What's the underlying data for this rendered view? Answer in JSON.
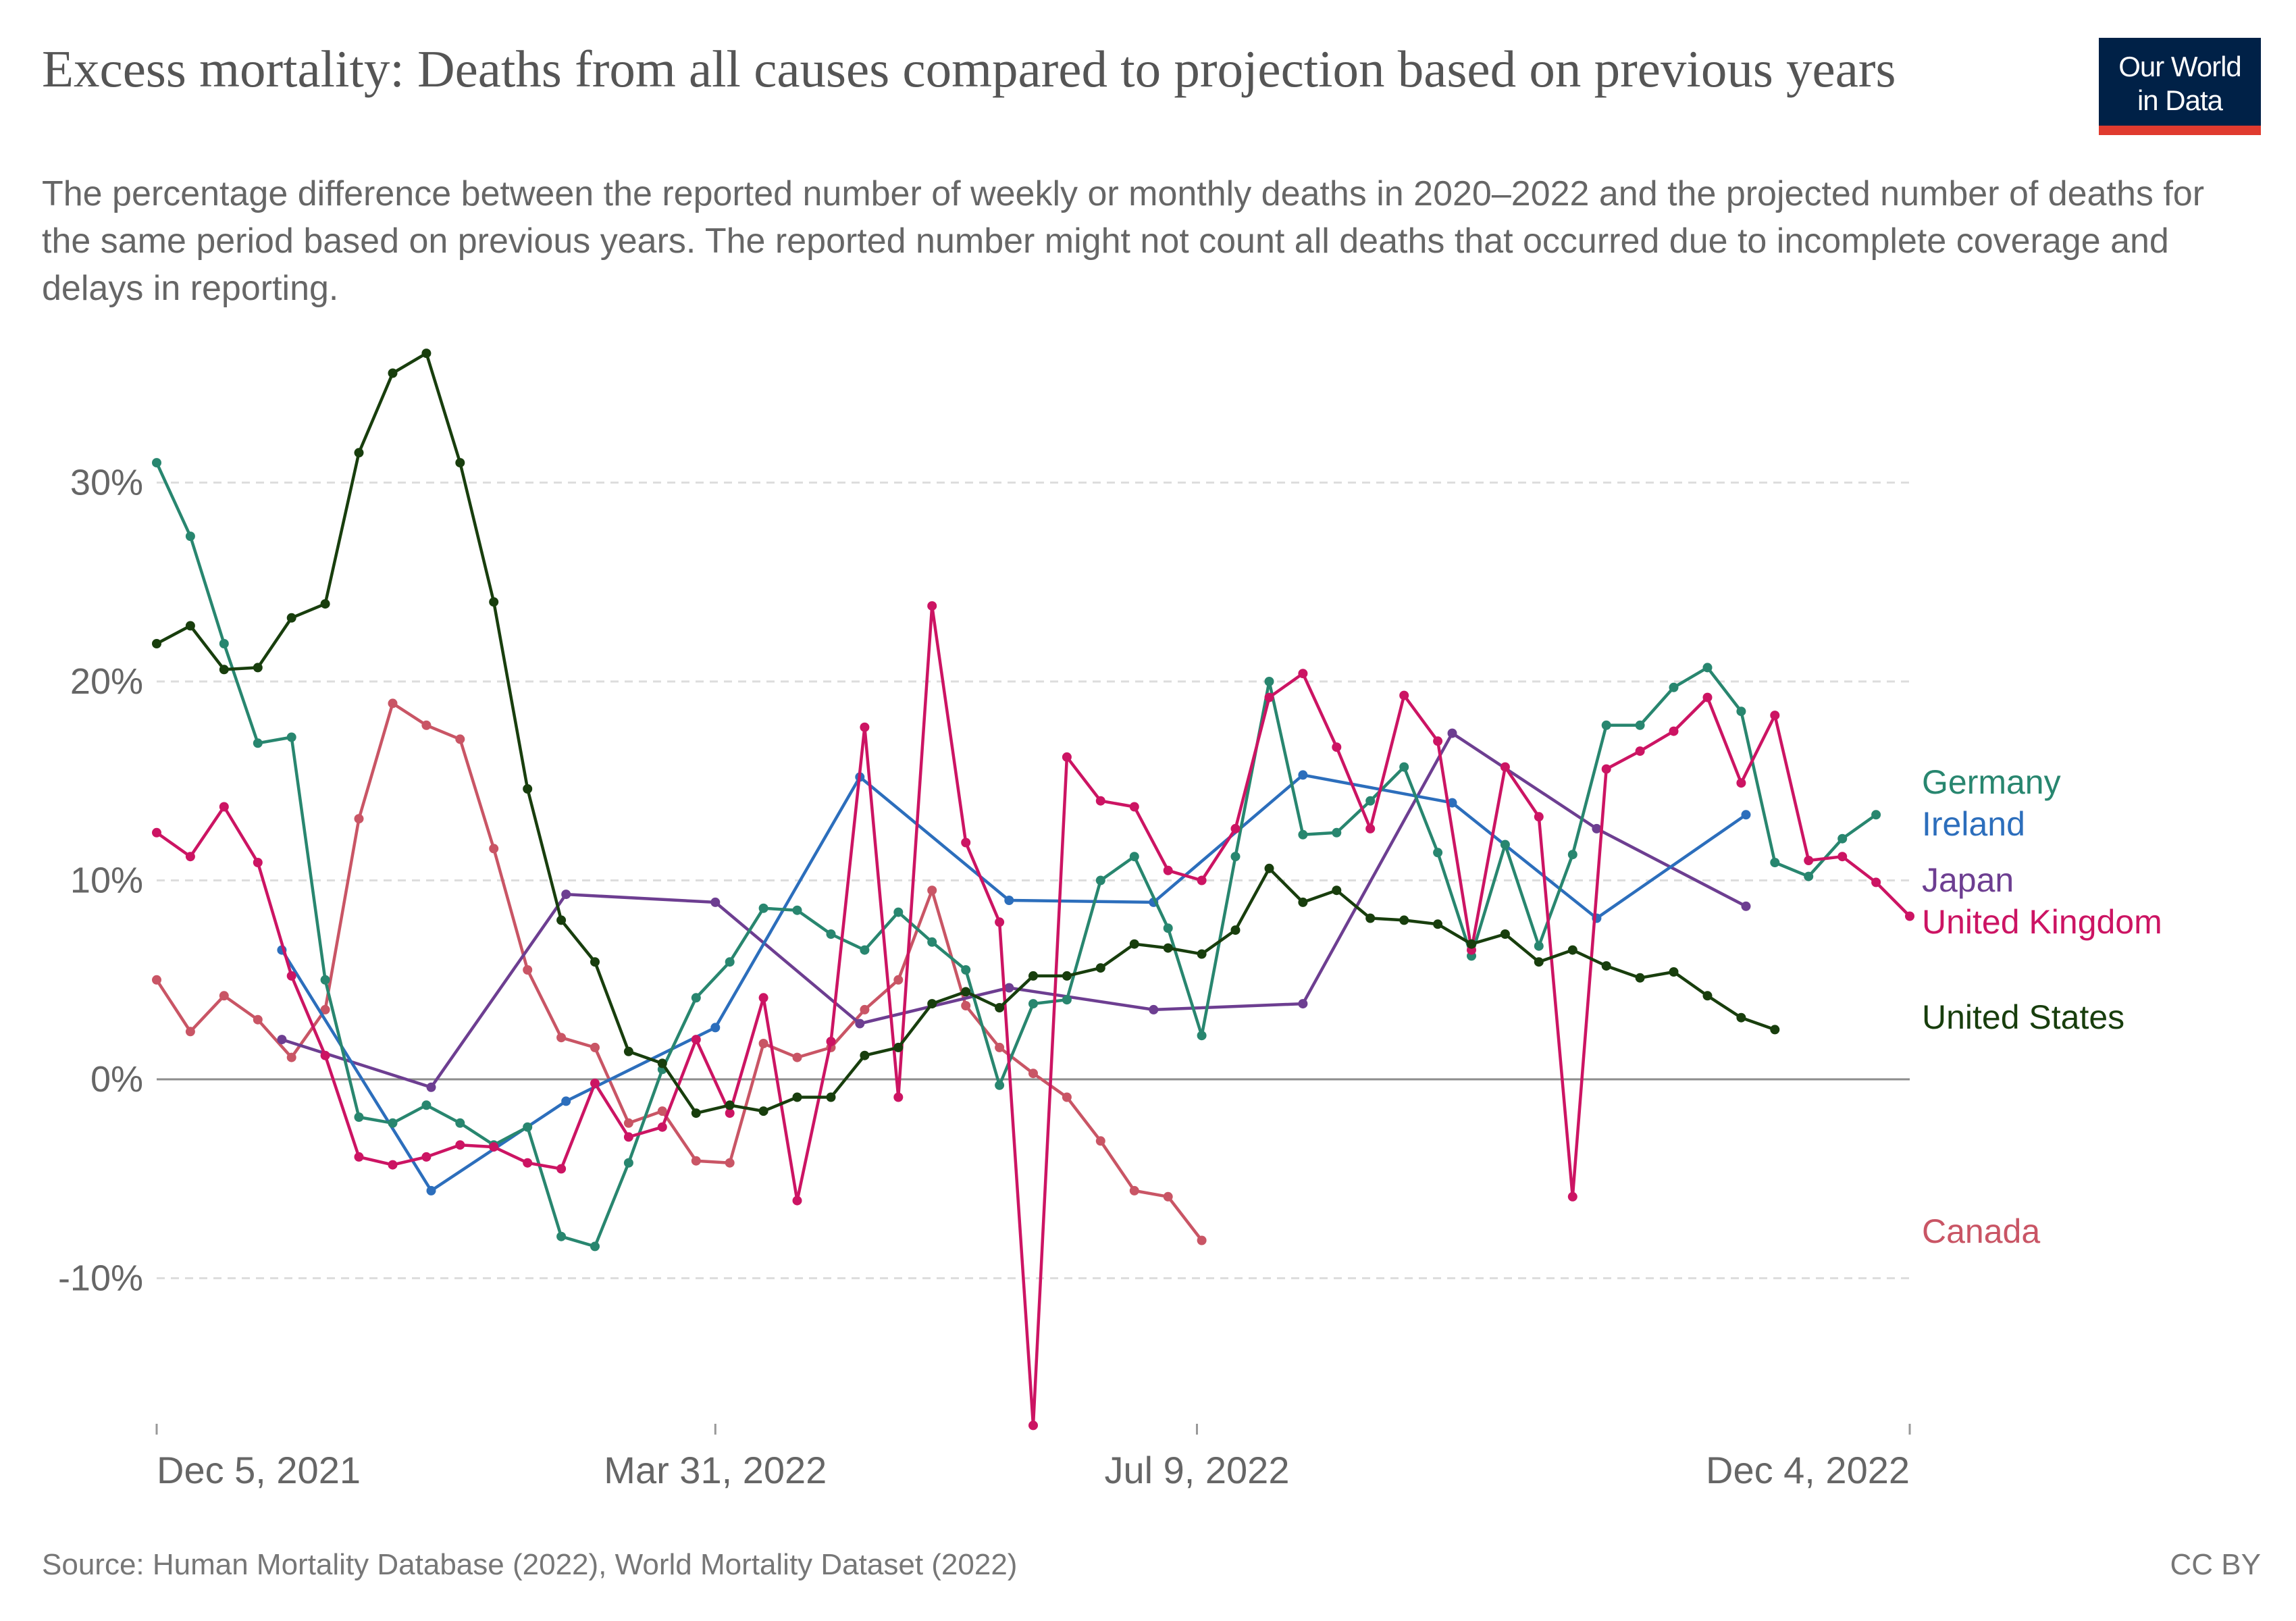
{
  "header": {
    "title": "Excess mortality: Deaths from all causes compared to projection based on previous years",
    "subtitle": "The percentage difference between the reported number of weekly or monthly deaths in 2020–2022 and the projected number of deaths for the same period based on previous years. The reported number might not count all deaths that occurred due to incomplete coverage and delays in reporting.",
    "logo_line1": "Our World",
    "logo_line2": "in Data"
  },
  "footer": {
    "source": "Source: Human Mortality Database (2022), World Mortality Dataset (2022)",
    "license": "CC BY"
  },
  "colors": {
    "Germany": "#28866f",
    "Ireland": "#2c6ebc",
    "Japan": "#6d3e91",
    "United Kingdom": "#cc1463",
    "United States": "#183e0d",
    "Canada": "#c95565"
  },
  "chart_data": {
    "type": "line",
    "title": "Excess mortality: Deaths from all causes compared to projection based on previous years",
    "x_axis": {
      "type": "date",
      "range": [
        "2021-12-05",
        "2022-12-04"
      ],
      "ticks": [
        {
          "date": "2021-12-05",
          "label": "Dec 5, 2021"
        },
        {
          "date": "2022-03-31",
          "label": "Mar 31, 2022"
        },
        {
          "date": "2022-07-09",
          "label": "Jul 9, 2022"
        },
        {
          "date": "2022-12-04",
          "label": "Dec 4, 2022"
        }
      ]
    },
    "y_axis": {
      "unit": "%",
      "range": [
        -17.5,
        36.5
      ],
      "ticks": [
        {
          "value": -10,
          "label": "-10%"
        },
        {
          "value": 0,
          "label": "0%"
        },
        {
          "value": 10,
          "label": "10%"
        },
        {
          "value": 20,
          "label": "20%"
        },
        {
          "value": 30,
          "label": "30%"
        }
      ],
      "grid": true
    },
    "legend_placement": "right, labels at line ends",
    "series": [
      {
        "name": "Canada",
        "points": [
          [
            "2021-12-05",
            5.0
          ],
          [
            "2021-12-12",
            2.4
          ],
          [
            "2021-12-19",
            4.2
          ],
          [
            "2021-12-26",
            3.0
          ],
          [
            "2022-01-02",
            1.1
          ],
          [
            "2022-01-09",
            3.5
          ],
          [
            "2022-01-16",
            13.1
          ],
          [
            "2022-01-23",
            18.9
          ],
          [
            "2022-01-30",
            17.8
          ],
          [
            "2022-02-06",
            17.1
          ],
          [
            "2022-02-13",
            11.6
          ],
          [
            "2022-02-20",
            5.5
          ],
          [
            "2022-02-27",
            2.1
          ],
          [
            "2022-03-06",
            1.6
          ],
          [
            "2022-03-13",
            -2.2
          ],
          [
            "2022-03-20",
            -1.6
          ],
          [
            "2022-03-27",
            -4.1
          ],
          [
            "2022-04-03",
            -4.2
          ],
          [
            "2022-04-10",
            1.8
          ],
          [
            "2022-04-17",
            1.1
          ],
          [
            "2022-04-24",
            1.6
          ],
          [
            "2022-05-01",
            3.5
          ],
          [
            "2022-05-08",
            5.0
          ],
          [
            "2022-05-15",
            9.5
          ],
          [
            "2022-05-22",
            3.7
          ],
          [
            "2022-05-29",
            1.6
          ],
          [
            "2022-06-05",
            0.3
          ],
          [
            "2022-06-12",
            -0.9
          ],
          [
            "2022-06-19",
            -3.1
          ],
          [
            "2022-06-26",
            -5.6
          ],
          [
            "2022-07-03",
            -5.9
          ],
          [
            "2022-07-10",
            -8.1
          ]
        ]
      },
      {
        "name": "Japan",
        "points": [
          [
            "2021-12-31",
            2.0
          ],
          [
            "2022-01-31",
            -0.4
          ],
          [
            "2022-02-28",
            9.3
          ],
          [
            "2022-03-31",
            8.9
          ],
          [
            "2022-04-30",
            2.8
          ],
          [
            "2022-05-31",
            4.6
          ],
          [
            "2022-06-30",
            3.5
          ],
          [
            "2022-07-31",
            3.8
          ],
          [
            "2022-08-31",
            17.4
          ],
          [
            "2022-09-30",
            12.6
          ],
          [
            "2022-10-31",
            8.7
          ]
        ]
      },
      {
        "name": "Ireland",
        "points": [
          [
            "2021-12-31",
            6.5
          ],
          [
            "2022-01-31",
            -5.6
          ],
          [
            "2022-02-28",
            -1.1
          ],
          [
            "2022-03-31",
            2.6
          ],
          [
            "2022-04-30",
            15.2
          ],
          [
            "2022-05-31",
            9.0
          ],
          [
            "2022-06-30",
            8.9
          ],
          [
            "2022-07-31",
            15.3
          ],
          [
            "2022-08-31",
            13.9
          ],
          [
            "2022-09-30",
            8.1
          ],
          [
            "2022-10-31",
            13.3
          ]
        ]
      },
      {
        "name": "Germany",
        "points": [
          [
            "2021-12-05",
            31.0
          ],
          [
            "2021-12-12",
            27.3
          ],
          [
            "2021-12-19",
            21.9
          ],
          [
            "2021-12-26",
            16.9
          ],
          [
            "2022-01-02",
            17.2
          ],
          [
            "2022-01-09",
            5.0
          ],
          [
            "2022-01-16",
            -1.9
          ],
          [
            "2022-01-23",
            -2.2
          ],
          [
            "2022-01-30",
            -1.3
          ],
          [
            "2022-02-06",
            -2.2
          ],
          [
            "2022-02-13",
            -3.3
          ],
          [
            "2022-02-20",
            -2.4
          ],
          [
            "2022-02-27",
            -7.9
          ],
          [
            "2022-03-06",
            -8.4
          ],
          [
            "2022-03-13",
            -4.2
          ],
          [
            "2022-03-20",
            0.5
          ],
          [
            "2022-03-27",
            4.1
          ],
          [
            "2022-04-03",
            5.9
          ],
          [
            "2022-04-10",
            8.6
          ],
          [
            "2022-04-17",
            8.5
          ],
          [
            "2022-04-24",
            7.3
          ],
          [
            "2022-05-01",
            6.5
          ],
          [
            "2022-05-08",
            8.4
          ],
          [
            "2022-05-15",
            6.9
          ],
          [
            "2022-05-22",
            5.5
          ],
          [
            "2022-05-29",
            -0.3
          ],
          [
            "2022-06-05",
            3.8
          ],
          [
            "2022-06-12",
            4.0
          ],
          [
            "2022-06-19",
            10.0
          ],
          [
            "2022-06-26",
            11.2
          ],
          [
            "2022-07-03",
            7.6
          ],
          [
            "2022-07-10",
            2.2
          ],
          [
            "2022-07-17",
            11.2
          ],
          [
            "2022-07-24",
            20.0
          ],
          [
            "2022-07-31",
            12.3
          ],
          [
            "2022-08-07",
            12.4
          ],
          [
            "2022-08-14",
            14.0
          ],
          [
            "2022-08-21",
            15.7
          ],
          [
            "2022-08-28",
            11.4
          ],
          [
            "2022-09-04",
            6.2
          ],
          [
            "2022-09-11",
            11.8
          ],
          [
            "2022-09-18",
            6.7
          ],
          [
            "2022-09-25",
            11.3
          ],
          [
            "2022-10-02",
            17.8
          ],
          [
            "2022-10-09",
            17.8
          ],
          [
            "2022-10-16",
            19.7
          ],
          [
            "2022-10-23",
            20.7
          ],
          [
            "2022-10-30",
            18.5
          ],
          [
            "2022-11-06",
            10.9
          ],
          [
            "2022-11-13",
            10.2
          ],
          [
            "2022-11-20",
            12.1
          ],
          [
            "2022-11-27",
            13.3
          ]
        ]
      },
      {
        "name": "United Kingdom",
        "points": [
          [
            "2021-12-05",
            12.4
          ],
          [
            "2021-12-12",
            11.2
          ],
          [
            "2021-12-19",
            13.7
          ],
          [
            "2021-12-26",
            10.9
          ],
          [
            "2022-01-02",
            5.2
          ],
          [
            "2022-01-09",
            1.2
          ],
          [
            "2022-01-16",
            -3.9
          ],
          [
            "2022-01-23",
            -4.3
          ],
          [
            "2022-01-30",
            -3.9
          ],
          [
            "2022-02-06",
            -3.3
          ],
          [
            "2022-02-13",
            -3.4
          ],
          [
            "2022-02-20",
            -4.2
          ],
          [
            "2022-02-27",
            -4.5
          ],
          [
            "2022-03-06",
            -0.2
          ],
          [
            "2022-03-13",
            -2.9
          ],
          [
            "2022-03-20",
            -2.4
          ],
          [
            "2022-03-27",
            2.0
          ],
          [
            "2022-04-03",
            -1.7
          ],
          [
            "2022-04-10",
            4.1
          ],
          [
            "2022-04-17",
            -6.1
          ],
          [
            "2022-04-24",
            1.9
          ],
          [
            "2022-05-01",
            17.7
          ],
          [
            "2022-05-08",
            -0.9
          ],
          [
            "2022-05-15",
            23.8
          ],
          [
            "2022-05-22",
            11.9
          ],
          [
            "2022-05-29",
            7.9
          ],
          [
            "2022-06-05",
            -17.4
          ],
          [
            "2022-06-12",
            16.2
          ],
          [
            "2022-06-19",
            14.0
          ],
          [
            "2022-06-26",
            13.7
          ],
          [
            "2022-07-03",
            10.5
          ],
          [
            "2022-07-10",
            10.0
          ],
          [
            "2022-07-17",
            12.6
          ],
          [
            "2022-07-24",
            19.2
          ],
          [
            "2022-07-31",
            20.4
          ],
          [
            "2022-08-07",
            16.7
          ],
          [
            "2022-08-14",
            12.6
          ],
          [
            "2022-08-21",
            19.3
          ],
          [
            "2022-08-28",
            17.0
          ],
          [
            "2022-09-04",
            6.5
          ],
          [
            "2022-09-11",
            15.7
          ],
          [
            "2022-09-18",
            13.2
          ],
          [
            "2022-09-25",
            -5.9
          ],
          [
            "2022-10-02",
            15.6
          ],
          [
            "2022-10-09",
            16.5
          ],
          [
            "2022-10-16",
            17.5
          ],
          [
            "2022-10-23",
            19.2
          ],
          [
            "2022-10-30",
            14.9
          ],
          [
            "2022-11-06",
            18.3
          ],
          [
            "2022-11-13",
            11.0
          ],
          [
            "2022-11-20",
            11.2
          ],
          [
            "2022-11-27",
            9.9
          ],
          [
            "2022-12-04",
            8.2
          ]
        ]
      },
      {
        "name": "United States",
        "points": [
          [
            "2021-12-05",
            21.9
          ],
          [
            "2021-12-12",
            22.8
          ],
          [
            "2021-12-19",
            20.6
          ],
          [
            "2021-12-26",
            20.7
          ],
          [
            "2022-01-02",
            23.2
          ],
          [
            "2022-01-09",
            23.9
          ],
          [
            "2022-01-16",
            31.5
          ],
          [
            "2022-01-23",
            35.5
          ],
          [
            "2022-01-30",
            36.5
          ],
          [
            "2022-02-06",
            31.0
          ],
          [
            "2022-02-13",
            24.0
          ],
          [
            "2022-02-20",
            14.6
          ],
          [
            "2022-02-27",
            8.0
          ],
          [
            "2022-03-06",
            5.9
          ],
          [
            "2022-03-13",
            1.4
          ],
          [
            "2022-03-20",
            0.8
          ],
          [
            "2022-03-27",
            -1.7
          ],
          [
            "2022-04-03",
            -1.3
          ],
          [
            "2022-04-10",
            -1.6
          ],
          [
            "2022-04-17",
            -0.9
          ],
          [
            "2022-04-24",
            -0.9
          ],
          [
            "2022-05-01",
            1.2
          ],
          [
            "2022-05-08",
            1.6
          ],
          [
            "2022-05-15",
            3.8
          ],
          [
            "2022-05-22",
            4.4
          ],
          [
            "2022-05-29",
            3.6
          ],
          [
            "2022-06-05",
            5.2
          ],
          [
            "2022-06-12",
            5.2
          ],
          [
            "2022-06-19",
            5.6
          ],
          [
            "2022-06-26",
            6.8
          ],
          [
            "2022-07-03",
            6.6
          ],
          [
            "2022-07-10",
            6.3
          ],
          [
            "2022-07-17",
            7.5
          ],
          [
            "2022-07-24",
            10.6
          ],
          [
            "2022-07-31",
            8.9
          ],
          [
            "2022-08-07",
            9.5
          ],
          [
            "2022-08-14",
            8.1
          ],
          [
            "2022-08-21",
            8.0
          ],
          [
            "2022-08-28",
            7.8
          ],
          [
            "2022-09-04",
            6.8
          ],
          [
            "2022-09-11",
            7.3
          ],
          [
            "2022-09-18",
            5.9
          ],
          [
            "2022-09-25",
            6.5
          ],
          [
            "2022-10-02",
            5.7
          ],
          [
            "2022-10-09",
            5.1
          ],
          [
            "2022-10-16",
            5.4
          ],
          [
            "2022-10-23",
            4.2
          ],
          [
            "2022-10-30",
            3.1
          ],
          [
            "2022-11-06",
            2.5
          ]
        ]
      }
    ]
  }
}
